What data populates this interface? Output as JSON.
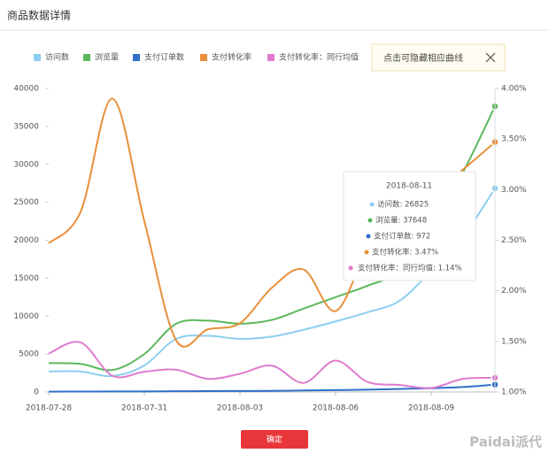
{
  "header": {
    "title": "商品数据详情"
  },
  "legend_hint": "点击可隐藏相应曲线",
  "button": {
    "label": "确定"
  },
  "watermark": "Paidai派代",
  "chart_data": {
    "type": "line",
    "categories": [
      "2018-07-28",
      null,
      null,
      "2018-07-31",
      null,
      null,
      "2018-08-03",
      null,
      null,
      "2018-08-06",
      null,
      null,
      "2018-08-09",
      null,
      null
    ],
    "ylim": [
      0,
      40000
    ],
    "yticks": [
      0,
      5000,
      10000,
      15000,
      20000,
      25000,
      30000,
      35000,
      40000
    ],
    "y2lim": [
      1,
      4
    ],
    "y2ticks": [
      {
        "value": 1,
        "label": "1.00%"
      },
      {
        "value": 1.5,
        "label": "1.50%"
      },
      {
        "value": 2,
        "label": "2.00%"
      },
      {
        "value": 2.5,
        "label": "2.50%"
      },
      {
        "value": 3,
        "label": "3.00%"
      },
      {
        "value": 3.5,
        "label": "3.50%"
      },
      {
        "value": 4,
        "label": "4.00%"
      }
    ],
    "series": [
      {
        "name": "访问数",
        "color": "#8ccff0",
        "values": [
          2700,
          2700,
          2100,
          3500,
          7000,
          7400,
          7000,
          7300,
          8200,
          9300,
          10500,
          12000,
          16000,
          20500,
          26825
        ]
      },
      {
        "name": "浏览量",
        "color": "#5cb85c",
        "values": [
          3800,
          3700,
          2900,
          5000,
          9000,
          9400,
          9000,
          9500,
          11000,
          12500,
          14000,
          16000,
          22000,
          29000,
          37648
        ]
      },
      {
        "name": "支付订单数",
        "color": "#2f6fc9",
        "values": [
          50,
          60,
          70,
          80,
          100,
          120,
          130,
          150,
          200,
          250,
          300,
          400,
          500,
          650,
          972
        ]
      },
      {
        "name": "支付转化率",
        "color": "#e8903a",
        "axis": "y2",
        "values": [
          2.47,
          2.78,
          3.9,
          2.69,
          1.51,
          1.62,
          1.68,
          2.03,
          2.21,
          1.8,
          2.4,
          2.7,
          2.95,
          3.2,
          3.47
        ]
      },
      {
        "name": "支付转化率：同行均值",
        "color": "#e07bd0",
        "axis": "y2",
        "values": [
          1.38,
          1.49,
          1.16,
          1.2,
          1.22,
          1.13,
          1.18,
          1.26,
          1.09,
          1.31,
          1.1,
          1.07,
          1.04,
          1.13,
          1.14
        ]
      }
    ],
    "tooltip": {
      "title": "2018-08-11",
      "items": [
        "访问数: 26825",
        "浏览量: 37648",
        "支付订单数: 972",
        "支付转化率: 3.47%",
        "支付转化率：同行均值: 1.14%"
      ]
    }
  }
}
